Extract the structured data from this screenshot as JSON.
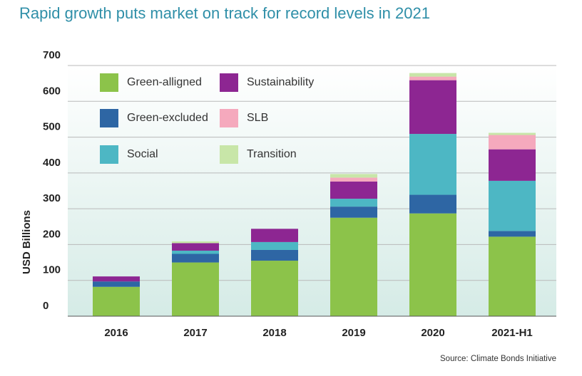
{
  "title": "Rapid growth puts market on track for record levels in 2021",
  "source": "Source: Climate Bonds Initiative",
  "chart_data": {
    "type": "bar",
    "stacked": true,
    "ylabel": "USD Billions",
    "ylim": [
      0,
      700
    ],
    "yticks": [
      0,
      100,
      200,
      300,
      400,
      500,
      600,
      700
    ],
    "grid": true,
    "legend_position": "top-left",
    "categories": [
      "2016",
      "2017",
      "2018",
      "2019",
      "2020",
      "2021-H1"
    ],
    "series": [
      {
        "name": "Green-alligned",
        "color": "#8cc34a",
        "values": [
          82,
          150,
          155,
          275,
          287,
          222
        ]
      },
      {
        "name": "Green-excluded",
        "color": "#2e66a4",
        "values": [
          15,
          24,
          30,
          31,
          52,
          16
        ]
      },
      {
        "name": "Social",
        "color": "#4db7c4",
        "values": [
          0,
          9,
          22,
          22,
          170,
          140
        ]
      },
      {
        "name": "Sustainability",
        "color": "#8d2692",
        "values": [
          14,
          21,
          37,
          48,
          150,
          88
        ]
      },
      {
        "name": "SLB",
        "color": "#f5a9bd",
        "values": [
          0,
          0,
          0,
          11,
          10,
          40
        ]
      },
      {
        "name": "Transition",
        "color": "#c8e6a8",
        "values": [
          0,
          5,
          0,
          10,
          10,
          6
        ]
      }
    ]
  }
}
